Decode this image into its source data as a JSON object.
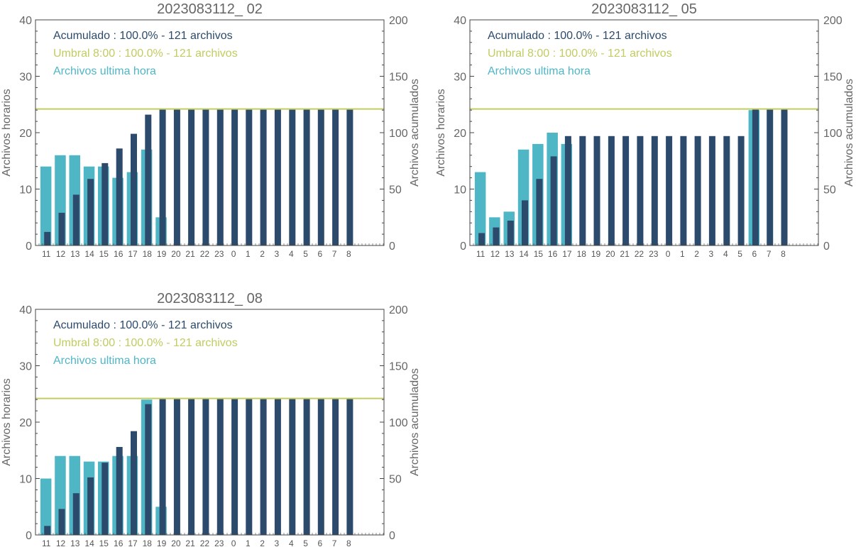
{
  "colors": {
    "hourly": "#4fb6c6",
    "cumulative": "#2c4a6b",
    "threshold": "#c2cc60",
    "axis": "#444444",
    "text": "#666666"
  },
  "chart_data": [
    {
      "type": "bar",
      "title": "2023083112_ 02",
      "ylabel_left": "Archivos horarios",
      "ylabel_right": "Archivos acumulados",
      "ylim_left": [
        0,
        40
      ],
      "ylim_right": [
        0,
        200
      ],
      "yticks_left": [
        "0",
        "10",
        "20",
        "30",
        "40"
      ],
      "yticks_right": [
        "0",
        "50",
        "100",
        "150",
        "200"
      ],
      "categories": [
        "11",
        "12",
        "13",
        "14",
        "15",
        "16",
        "17",
        "18",
        "19",
        "20",
        "21",
        "22",
        "23",
        "0",
        "1",
        "2",
        "3",
        "4",
        "5",
        "6",
        "7",
        "8"
      ],
      "legend": [
        {
          "text": "Acumulado : 100.0% - 121 archivos",
          "color": "#2c4a6b"
        },
        {
          "text": "Umbral 8:00 : 100.0% - 121 archivos",
          "color": "#c2cc60"
        },
        {
          "text": "Archivos ultima hora",
          "color": "#4fb6c6"
        }
      ],
      "series": [
        {
          "name": "Archivos ultima hora",
          "axis": "left",
          "values": [
            14,
            16,
            16,
            14,
            14,
            12,
            13,
            17,
            5,
            0,
            0,
            0,
            0,
            0,
            0,
            0,
            0,
            0,
            0,
            0,
            0,
            0
          ]
        },
        {
          "name": "Acumulado",
          "axis": "right",
          "values": [
            12,
            29,
            45,
            59,
            73,
            86,
            99,
            116,
            121,
            121,
            121,
            121,
            121,
            121,
            121,
            121,
            121,
            121,
            121,
            121,
            121,
            121
          ]
        }
      ],
      "threshold": 121
    },
    {
      "type": "bar",
      "title": "2023083112_ 05",
      "ylabel_left": "Archivos horarios",
      "ylabel_right": "Archivos acumulados",
      "ylim_left": [
        0,
        40
      ],
      "ylim_right": [
        0,
        200
      ],
      "yticks_left": [
        "0",
        "10",
        "20",
        "30",
        "40"
      ],
      "yticks_right": [
        "0",
        "50",
        "100",
        "150",
        "200"
      ],
      "categories": [
        "11",
        "12",
        "13",
        "14",
        "15",
        "16",
        "17",
        "18",
        "19",
        "20",
        "21",
        "22",
        "23",
        "0",
        "1",
        "2",
        "3",
        "4",
        "5",
        "6",
        "7",
        "8"
      ],
      "legend": [
        {
          "text": "Acumulado : 100.0% - 121 archivos",
          "color": "#2c4a6b"
        },
        {
          "text": "Umbral 8:00 : 100.0% - 121 archivos",
          "color": "#c2cc60"
        },
        {
          "text": "Archivos ultima hora",
          "color": "#4fb6c6"
        }
      ],
      "series": [
        {
          "name": "Archivos ultima hora",
          "axis": "left",
          "values": [
            13,
            5,
            6,
            17,
            18,
            20,
            18,
            0,
            0,
            0,
            0,
            0,
            0,
            0,
            0,
            0,
            0,
            0,
            0,
            24,
            0,
            0
          ]
        },
        {
          "name": "Acumulado",
          "axis": "right",
          "values": [
            11,
            16,
            22,
            40,
            59,
            79,
            97,
            97,
            97,
            97,
            97,
            97,
            97,
            97,
            97,
            97,
            97,
            97,
            97,
            121,
            121,
            121
          ]
        }
      ],
      "threshold": 121
    },
    {
      "type": "bar",
      "title": "2023083112_ 08",
      "ylabel_left": "Archivos horarios",
      "ylabel_right": "Archivos acumulados",
      "ylim_left": [
        0,
        40
      ],
      "ylim_right": [
        0,
        200
      ],
      "yticks_left": [
        "0",
        "10",
        "20",
        "30",
        "40"
      ],
      "yticks_right": [
        "0",
        "50",
        "100",
        "150",
        "200"
      ],
      "categories": [
        "11",
        "12",
        "13",
        "14",
        "15",
        "16",
        "17",
        "18",
        "19",
        "20",
        "21",
        "22",
        "23",
        "0",
        "1",
        "2",
        "3",
        "4",
        "5",
        "6",
        "7",
        "8"
      ],
      "legend": [
        {
          "text": "Acumulado : 100.0% - 121 archivos",
          "color": "#2c4a6b"
        },
        {
          "text": "Umbral 8:00 : 100.0% - 121 archivos",
          "color": "#c2cc60"
        },
        {
          "text": "Archivos ultima hora",
          "color": "#4fb6c6"
        }
      ],
      "series": [
        {
          "name": "Archivos ultima hora",
          "axis": "left",
          "values": [
            10,
            14,
            14,
            13,
            13,
            14,
            14,
            24,
            5,
            0,
            0,
            0,
            0,
            0,
            0,
            0,
            0,
            0,
            0,
            0,
            0,
            0
          ]
        },
        {
          "name": "Acumulado",
          "axis": "right",
          "values": [
            8,
            23,
            37,
            51,
            64,
            78,
            92,
            116,
            121,
            121,
            121,
            121,
            121,
            121,
            121,
            121,
            121,
            121,
            121,
            121,
            121,
            121
          ]
        }
      ],
      "threshold": 121
    }
  ]
}
